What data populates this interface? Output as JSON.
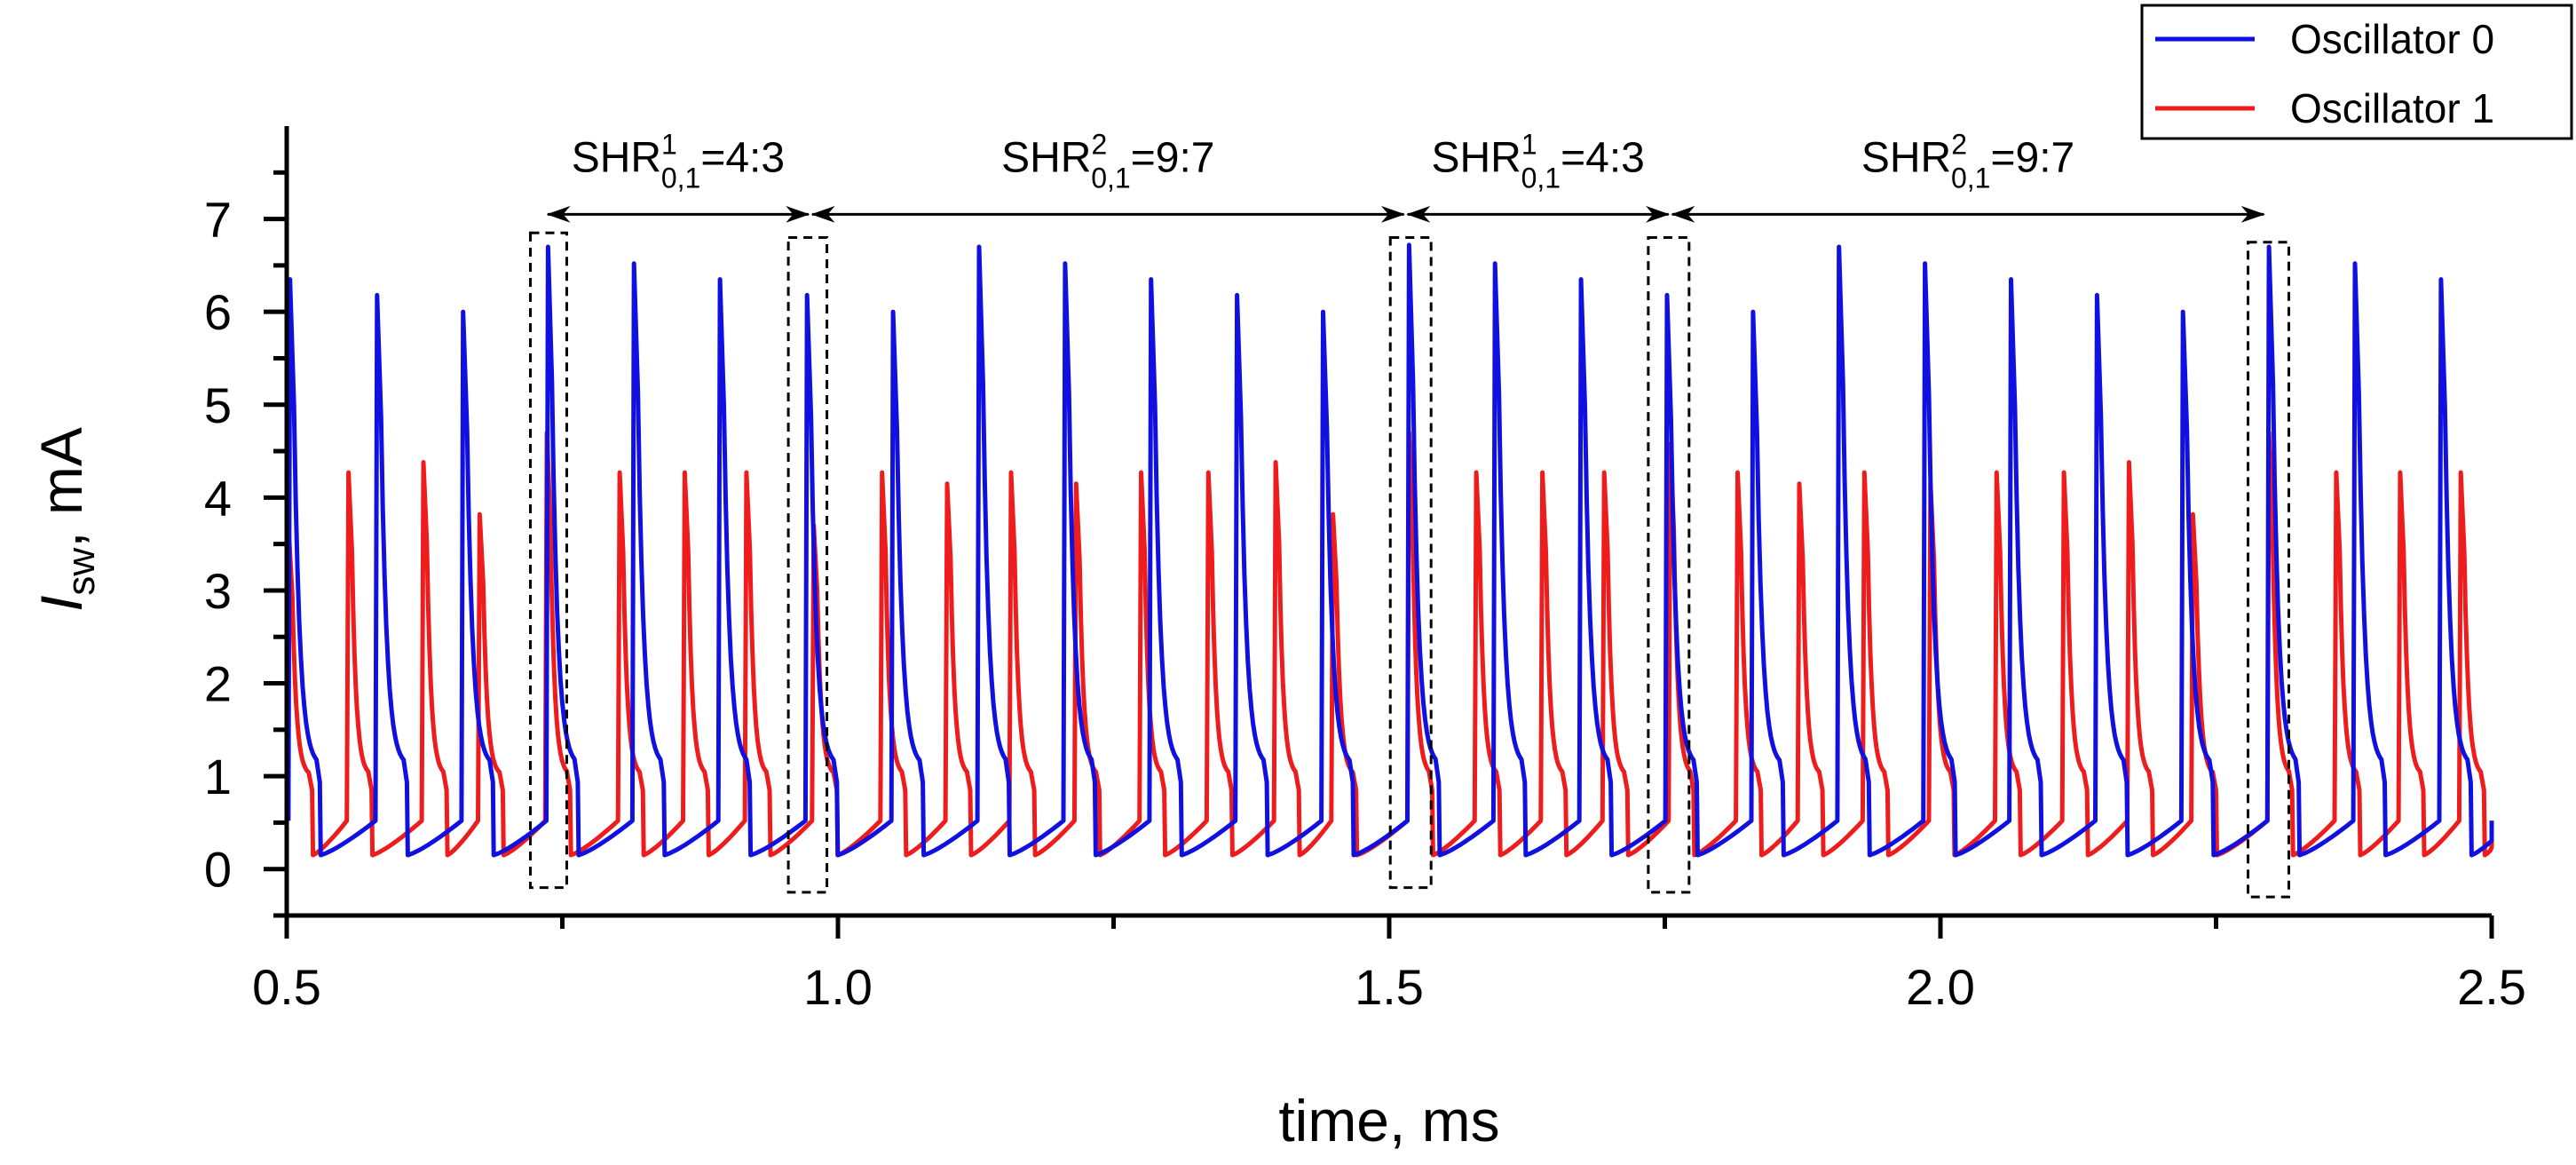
{
  "chart_data": {
    "type": "line",
    "xlabel": "time, ms",
    "ylabel_main": "I",
    "ylabel_sub": "sw",
    "ylabel_unit": ", mA",
    "xlim": [
      0.5,
      2.5
    ],
    "ylim": [
      -0.5,
      8.0
    ],
    "xticks": [
      0.5,
      1.0,
      1.5,
      2.0,
      2.5
    ],
    "xtick_labels": [
      "0.5",
      "1.0",
      "1.5",
      "2.0",
      "2.5"
    ],
    "yticks": [
      0,
      1,
      2,
      3,
      4,
      5,
      6,
      7
    ],
    "ytick_labels": [
      "0",
      "1",
      "2",
      "3",
      "4",
      "5",
      "6",
      "7"
    ],
    "colors": {
      "osc0": "#1010e0",
      "osc1": "#ee1c1c"
    },
    "legend": {
      "position": "top-right",
      "entries": [
        "Oscillator 0",
        "Oscillator 1"
      ]
    },
    "series": [
      {
        "name": "Oscillator 0",
        "color": "#1010e0",
        "spikes": [
          {
            "t": 0.503,
            "peak": 6.35
          },
          {
            "t": 0.582,
            "peak": 6.18
          },
          {
            "t": 0.66,
            "peak": 6.0
          },
          {
            "t": 0.737,
            "peak": 6.7
          },
          {
            "t": 0.815,
            "peak": 6.52
          },
          {
            "t": 0.893,
            "peak": 6.35
          },
          {
            "t": 0.972,
            "peak": 6.18
          },
          {
            "t": 1.05,
            "peak": 6.0
          },
          {
            "t": 1.128,
            "peak": 6.7
          },
          {
            "t": 1.206,
            "peak": 6.52
          },
          {
            "t": 1.284,
            "peak": 6.35
          },
          {
            "t": 1.362,
            "peak": 6.18
          },
          {
            "t": 1.44,
            "peak": 6.0
          },
          {
            "t": 1.518,
            "peak": 6.72
          },
          {
            "t": 1.596,
            "peak": 6.52
          },
          {
            "t": 1.674,
            "peak": 6.35
          },
          {
            "t": 1.752,
            "peak": 6.18
          },
          {
            "t": 1.83,
            "peak": 6.0
          },
          {
            "t": 1.908,
            "peak": 6.7
          },
          {
            "t": 1.986,
            "peak": 6.52
          },
          {
            "t": 2.064,
            "peak": 6.35
          },
          {
            "t": 2.142,
            "peak": 6.18
          },
          {
            "t": 2.22,
            "peak": 6.0
          },
          {
            "t": 2.298,
            "peak": 6.7
          },
          {
            "t": 2.376,
            "peak": 6.52
          },
          {
            "t": 2.454,
            "peak": 6.35
          }
        ]
      },
      {
        "name": "Oscillator 1",
        "color": "#ee1c1c",
        "spikes": [
          {
            "t": 0.502,
            "peak": 3.6
          },
          {
            "t": 0.556,
            "peak": 4.27
          },
          {
            "t": 0.624,
            "peak": 4.38
          },
          {
            "t": 0.675,
            "peak": 3.82
          },
          {
            "t": 0.736,
            "peak": 4.7
          },
          {
            "t": 0.802,
            "peak": 4.27
          },
          {
            "t": 0.861,
            "peak": 4.27
          },
          {
            "t": 0.917,
            "peak": 4.27
          },
          {
            "t": 0.978,
            "peak": 3.7
          },
          {
            "t": 1.04,
            "peak": 4.27
          },
          {
            "t": 1.099,
            "peak": 4.15
          },
          {
            "t": 1.157,
            "peak": 4.27
          },
          {
            "t": 1.216,
            "peak": 4.15
          },
          {
            "t": 1.275,
            "peak": 4.27
          },
          {
            "t": 1.336,
            "peak": 4.27
          },
          {
            "t": 1.397,
            "peak": 4.38
          },
          {
            "t": 1.449,
            "peak": 3.82
          },
          {
            "t": 1.518,
            "peak": 4.7
          },
          {
            "t": 1.579,
            "peak": 4.27
          },
          {
            "t": 1.639,
            "peak": 4.27
          },
          {
            "t": 1.695,
            "peak": 4.27
          },
          {
            "t": 1.755,
            "peak": 4.58
          },
          {
            "t": 1.816,
            "peak": 4.27
          },
          {
            "t": 1.872,
            "peak": 4.15
          },
          {
            "t": 1.931,
            "peak": 4.27
          },
          {
            "t": 1.991,
            "peak": 4.15
          },
          {
            "t": 2.051,
            "peak": 4.27
          },
          {
            "t": 2.112,
            "peak": 4.27
          },
          {
            "t": 2.171,
            "peak": 4.38
          },
          {
            "t": 2.229,
            "peak": 3.82
          },
          {
            "t": 2.298,
            "peak": 4.7
          },
          {
            "t": 2.359,
            "peak": 4.27
          },
          {
            "t": 2.417,
            "peak": 4.27
          },
          {
            "t": 2.472,
            "peak": 4.27
          }
        ]
      }
    ],
    "annotations": [
      {
        "prefix": "SHR",
        "sup": "1",
        "sub": "0,1",
        "ratio": "=4:3",
        "x_start": 0.735,
        "x_end": 0.975
      },
      {
        "prefix": "SHR",
        "sup": "2",
        "sub": "0,1",
        "ratio": "=9:7",
        "x_start": 0.975,
        "x_end": 1.515
      },
      {
        "prefix": "SHR",
        "sup": "1",
        "sub": "0,1",
        "ratio": "=4:3",
        "x_start": 1.515,
        "x_end": 1.755
      },
      {
        "prefix": "SHR",
        "sup": "2",
        "sub": "0,1",
        "ratio": "=9:7",
        "x_start": 1.755,
        "x_end": 2.295
      }
    ],
    "arrow_y": 7.05,
    "dashed_boxes": [
      {
        "x0": 0.721,
        "x1": 0.754,
        "y0": -0.2,
        "y1": 6.85
      },
      {
        "x0": 0.955,
        "x1": 0.99,
        "y0": -0.25,
        "y1": 6.8
      },
      {
        "x0": 1.501,
        "x1": 1.538,
        "y0": -0.2,
        "y1": 6.8
      },
      {
        "x0": 1.735,
        "x1": 1.772,
        "y0": -0.25,
        "y1": 6.8
      },
      {
        "x0": 2.279,
        "x1": 2.316,
        "y0": -0.3,
        "y1": 6.75
      }
    ]
  }
}
